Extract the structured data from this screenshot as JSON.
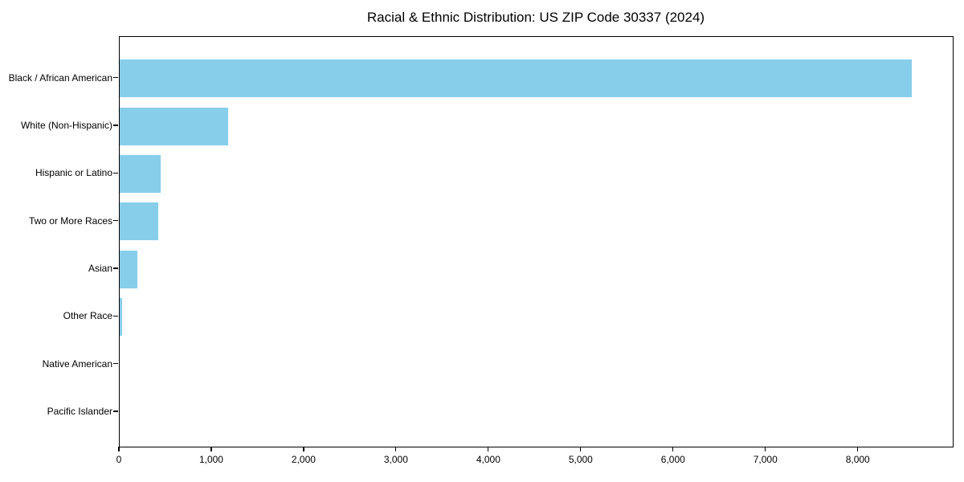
{
  "chart_data": {
    "type": "bar",
    "orientation": "horizontal",
    "title": "Racial & Ethnic Distribution: US ZIP Code 30337 (2024)",
    "categories": [
      "Black / African American",
      "White (Non-Hispanic)",
      "Hispanic or Latino",
      "Two or More Races",
      "Asian",
      "Other Race",
      "Native American",
      "Pacific Islander"
    ],
    "values": [
      8580,
      1170,
      440,
      415,
      190,
      30,
      0,
      0
    ],
    "xlabel": "",
    "ylabel": "",
    "xlim": [
      0,
      9020
    ],
    "x_ticks": [
      0,
      1000,
      2000,
      3000,
      4000,
      5000,
      6000,
      7000,
      8000
    ],
    "x_tick_labels": [
      "0",
      "1,000",
      "2,000",
      "3,000",
      "4,000",
      "5,000",
      "6,000",
      "7,000",
      "8,000"
    ],
    "bar_color": "#87CEEB",
    "background_color": "#ffffff",
    "spine_color": "#000000",
    "grid": false,
    "legend": false
  }
}
